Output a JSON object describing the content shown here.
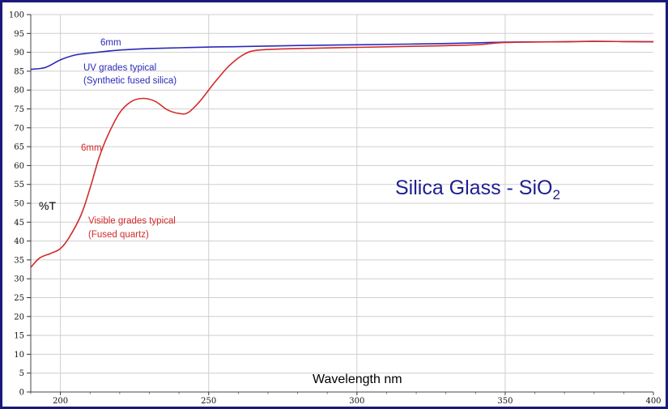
{
  "chart_data": {
    "type": "line",
    "title": "Silica Glass - SiO",
    "title_subscript": "2",
    "xlabel": "Wavelength nm",
    "ylabel": "%T",
    "xlim": [
      190,
      400
    ],
    "ylim": [
      0,
      100
    ],
    "x_ticks": [
      "200",
      "250",
      "300",
      "350",
      "400"
    ],
    "y_ticks": [
      "0",
      "5",
      "10",
      "15",
      "20",
      "25",
      "30",
      "35",
      "40",
      "45",
      "50",
      "55",
      "60",
      "65",
      "70",
      "75",
      "80",
      "85",
      "90",
      "95",
      "100"
    ],
    "grid": true,
    "series": [
      {
        "color": "#2a2ab8",
        "points": [
          [
            190,
            85.5
          ],
          [
            195,
            86
          ],
          [
            200,
            88
          ],
          [
            205,
            89.3
          ],
          [
            210,
            89.8
          ],
          [
            220,
            90.6
          ],
          [
            230,
            91
          ],
          [
            240,
            91.2
          ],
          [
            250,
            91.4
          ],
          [
            260,
            91.5
          ],
          [
            280,
            91.8
          ],
          [
            300,
            92
          ],
          [
            320,
            92.2
          ],
          [
            340,
            92.5
          ],
          [
            350,
            92.7
          ],
          [
            370,
            92.8
          ],
          [
            380,
            92.9
          ],
          [
            400,
            92.8
          ]
        ]
      },
      {
        "color": "#d42a2a",
        "points": [
          [
            190,
            33
          ],
          [
            193,
            35.5
          ],
          [
            197,
            36.8
          ],
          [
            200,
            38
          ],
          [
            203,
            41
          ],
          [
            207,
            47
          ],
          [
            210,
            54
          ],
          [
            213,
            62
          ],
          [
            216,
            68
          ],
          [
            220,
            74
          ],
          [
            224,
            77
          ],
          [
            228,
            77.8
          ],
          [
            232,
            77
          ],
          [
            236,
            74.8
          ],
          [
            240,
            73.8
          ],
          [
            243,
            74
          ],
          [
            247,
            77
          ],
          [
            252,
            82
          ],
          [
            257,
            86.5
          ],
          [
            262,
            89.5
          ],
          [
            267,
            90.6
          ],
          [
            280,
            91
          ],
          [
            300,
            91.3
          ],
          [
            320,
            91.6
          ],
          [
            340,
            92
          ],
          [
            350,
            92.6
          ],
          [
            370,
            92.8
          ],
          [
            380,
            92.9
          ],
          [
            400,
            92.8
          ]
        ]
      }
    ],
    "annotations": [
      {
        "text": "6mm",
        "color": "#2a2ab8"
      },
      {
        "text": "UV grades typical",
        "color": "#2a2ab8"
      },
      {
        "text": "(Synthetic fused silica)",
        "color": "#2a2ab8"
      },
      {
        "text": "6mm",
        "color": "#d42a2a"
      },
      {
        "text": "Visible grades typical",
        "color": "#d42a2a"
      },
      {
        "text": "(Fused quartz)",
        "color": "#d42a2a"
      }
    ],
    "frame_color": "#1a1a7a",
    "grid_color": "#cfcfcf"
  }
}
